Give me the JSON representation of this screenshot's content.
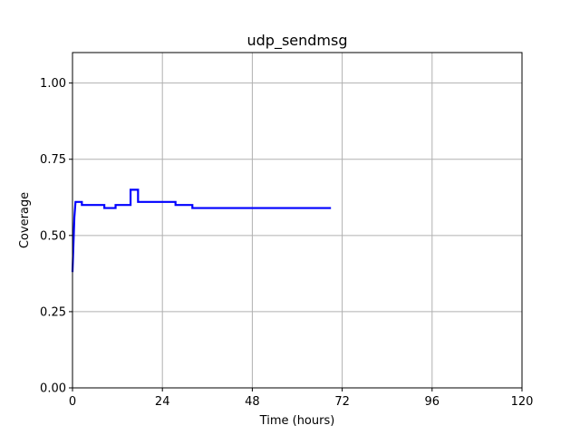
{
  "chart_data": {
    "type": "line",
    "title": "udp_sendmsg",
    "xlabel": "Time (hours)",
    "ylabel": "Coverage",
    "xlim": [
      0,
      120
    ],
    "ylim": [
      0,
      1.1
    ],
    "xticks": [
      0,
      24,
      48,
      72,
      96,
      120
    ],
    "xtick_labels": [
      "0",
      "24",
      "48",
      "72",
      "96",
      "120"
    ],
    "yticks": [
      0,
      0.25,
      0.5,
      0.75,
      1.0
    ],
    "ytick_labels": [
      "0.00",
      "0.25",
      "0.50",
      "0.75",
      "1.00"
    ],
    "grid": true,
    "line_color": "#0000ff",
    "series": [
      {
        "x": [
          0,
          0.5,
          0.8,
          2.5,
          2.5,
          8.5,
          8.5,
          11.5,
          11.5,
          15.5,
          15.5,
          17.5,
          17.5,
          27.5,
          27.5,
          32,
          32,
          69
        ],
        "y": [
          0.38,
          0.56,
          0.61,
          0.61,
          0.6,
          0.6,
          0.59,
          0.59,
          0.6,
          0.6,
          0.65,
          0.65,
          0.61,
          0.61,
          0.6,
          0.6,
          0.59,
          0.59
        ]
      }
    ]
  }
}
